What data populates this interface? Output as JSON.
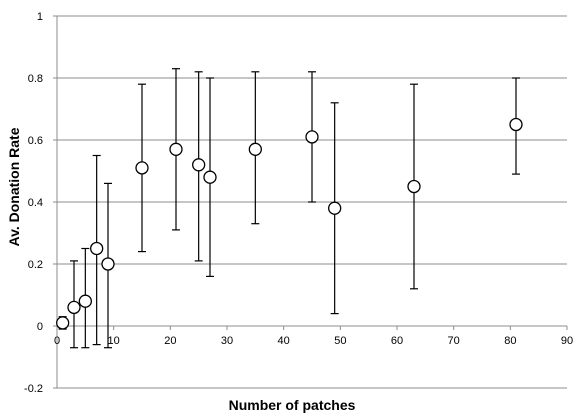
{
  "chart_data": {
    "type": "scatter",
    "title": "",
    "xlabel": "Number of patches",
    "ylabel": "Av. Donation Rate",
    "xlim": [
      0,
      90
    ],
    "ylim": [
      -0.2,
      1
    ],
    "xticks": [
      0,
      10,
      20,
      30,
      40,
      50,
      60,
      70,
      80,
      90
    ],
    "yticks": [
      -0.2,
      0,
      0.2,
      0.4,
      0.6,
      0.8,
      1
    ],
    "ytick_labels": [
      "-0.2",
      "0",
      "0.2",
      "0.4",
      "0.6",
      "0.8",
      "1"
    ],
    "grid": "horizontal",
    "marker": "open-circle",
    "error_bars": true,
    "points": [
      {
        "x": 1,
        "y": 0.01,
        "lo": -0.01,
        "hi": 0.03
      },
      {
        "x": 3,
        "y": 0.06,
        "lo": -0.07,
        "hi": 0.21
      },
      {
        "x": 5,
        "y": 0.08,
        "lo": -0.07,
        "hi": 0.25
      },
      {
        "x": 7,
        "y": 0.25,
        "lo": -0.06,
        "hi": 0.55
      },
      {
        "x": 9,
        "y": 0.2,
        "lo": -0.07,
        "hi": 0.46
      },
      {
        "x": 15,
        "y": 0.51,
        "lo": 0.24,
        "hi": 0.78
      },
      {
        "x": 21,
        "y": 0.57,
        "lo": 0.31,
        "hi": 0.83
      },
      {
        "x": 25,
        "y": 0.52,
        "lo": 0.21,
        "hi": 0.82
      },
      {
        "x": 27,
        "y": 0.48,
        "lo": 0.16,
        "hi": 0.8
      },
      {
        "x": 35,
        "y": 0.57,
        "lo": 0.33,
        "hi": 0.82
      },
      {
        "x": 45,
        "y": 0.61,
        "lo": 0.4,
        "hi": 0.82
      },
      {
        "x": 49,
        "y": 0.38,
        "lo": 0.04,
        "hi": 0.72
      },
      {
        "x": 63,
        "y": 0.45,
        "lo": 0.12,
        "hi": 0.78
      },
      {
        "x": 81,
        "y": 0.65,
        "lo": 0.49,
        "hi": 0.8
      }
    ]
  }
}
